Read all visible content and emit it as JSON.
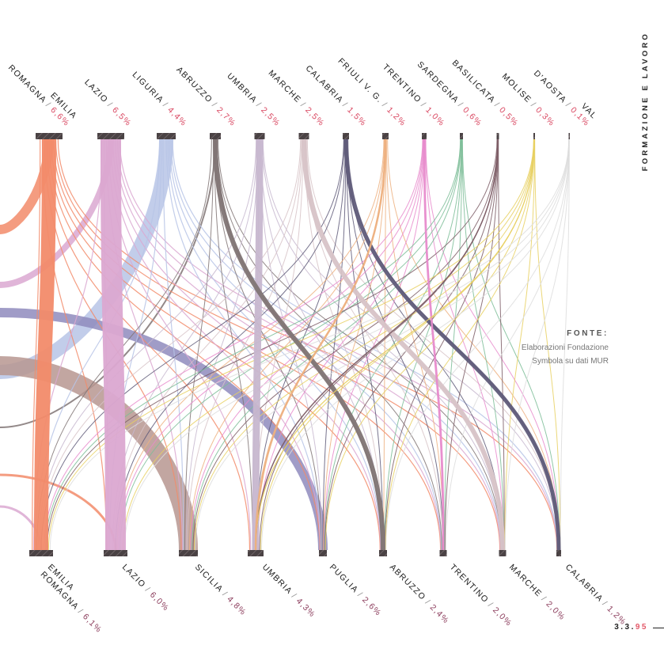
{
  "side_title": "FORMAZIONE E LAVORO",
  "source": {
    "title": "FONTE:",
    "lines": [
      "Elaborazioni Fondazione",
      "Symbola su dati MUR"
    ]
  },
  "page": {
    "section": "3.3.",
    "number": "95"
  },
  "chart_data": {
    "type": "sankey",
    "title": "",
    "top_nodes": [
      {
        "name": [
          "EMILIA",
          "ROMAGNA"
        ],
        "value": "6,6%",
        "color": "#f28b6a"
      },
      {
        "name": [
          "LAZIO"
        ],
        "value": "6,5%",
        "color": "#dba8d1"
      },
      {
        "name": [
          "LIGURIA"
        ],
        "value": "4,4%",
        "color": "#b7c4e6"
      },
      {
        "name": [
          "ABRUZZO"
        ],
        "value": "2,7%",
        "color": "#807474"
      },
      {
        "name": [
          "UMBRIA"
        ],
        "value": "2,5%",
        "color": "#c7b7cf"
      },
      {
        "name": [
          "MARCHE"
        ],
        "value": "2,5%",
        "color": "#d7c3c7"
      },
      {
        "name": [
          "CALABRIA"
        ],
        "value": "1,5%",
        "color": "#5f5b79"
      },
      {
        "name": [
          "FRIULI V. G."
        ],
        "value": "1,2%",
        "color": "#edb07f"
      },
      {
        "name": [
          "TRENTINO"
        ],
        "value": "1,0%",
        "color": "#e78bcc"
      },
      {
        "name": [
          "SARDEGNA"
        ],
        "value": "0,6%",
        "color": "#7dbd98"
      },
      {
        "name": [
          "BASILICATA"
        ],
        "value": "0,5%",
        "color": "#7d5d66"
      },
      {
        "name": [
          "MOLISE"
        ],
        "value": "0,3%",
        "color": "#e8d060"
      },
      {
        "name": [
          "VAL",
          "D'AOSTA"
        ],
        "value": "0,1%",
        "color": "#dddddd"
      }
    ],
    "bottom_nodes": [
      {
        "name": [
          "EMILIA",
          "ROMAGNA"
        ],
        "value": "6,1%"
      },
      {
        "name": [
          "LAZIO"
        ],
        "value": "6,0%"
      },
      {
        "name": [
          "SICILIA"
        ],
        "value": "4,8%"
      },
      {
        "name": [
          "UMBRIA"
        ],
        "value": "4,3%"
      },
      {
        "name": [
          "PUGLIA"
        ],
        "value": "2,6%"
      },
      {
        "name": [
          "ABRUZZO"
        ],
        "value": "2,4%"
      },
      {
        "name": [
          "TRENTINO"
        ],
        "value": "2,0%"
      },
      {
        "name": [
          "MARCHE"
        ],
        "value": "2,0%"
      },
      {
        "name": [
          "CALABRIA"
        ],
        "value": "1,2%"
      }
    ],
    "main_flows": [
      {
        "from": 0,
        "to": 0,
        "color": "#f28b6a",
        "w": 18
      },
      {
        "from": 1,
        "to": 1,
        "color": "#dba8d1",
        "w": 26
      },
      {
        "from": 4,
        "to": 3,
        "color": "#c7b7cf",
        "w": 9
      },
      {
        "from": 3,
        "to": 5,
        "color": "#807474",
        "w": 6
      },
      {
        "from": 6,
        "to": 8,
        "color": "#5f5b79",
        "w": 5
      },
      {
        "from": 5,
        "to": 7,
        "color": "#d7c3c7",
        "w": 6
      },
      {
        "from": 8,
        "to": 6,
        "color": "#e78bcc",
        "w": 2.5
      },
      {
        "from": 10,
        "to": 3,
        "color": "#7d5d66",
        "w": 1.5
      },
      {
        "from": 11,
        "to": 3,
        "color": "#e8d060",
        "w": 1.2
      },
      {
        "from": 7,
        "to": 3,
        "color": "#edb07f",
        "w": 2.5
      }
    ]
  }
}
